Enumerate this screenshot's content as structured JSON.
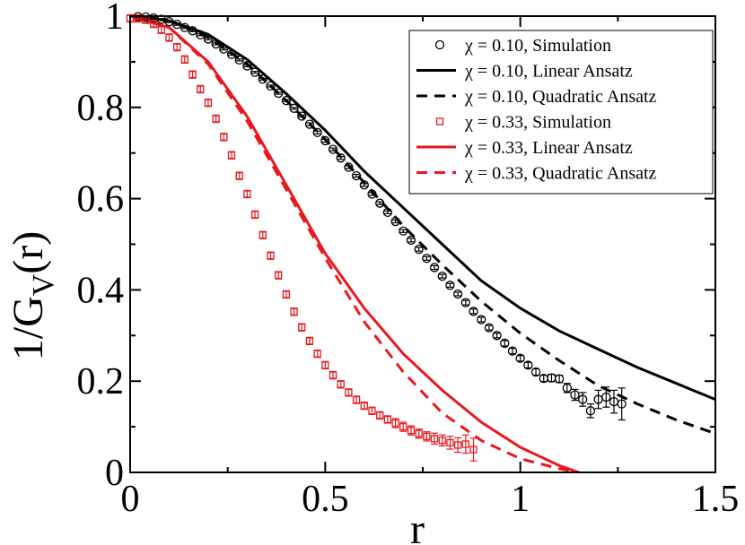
{
  "chart_data": {
    "type": "scatter",
    "xlabel": "r",
    "ylabel": "1/G",
    "ylabel_sub": "V",
    "ylabel_tail": "(r)",
    "xlim": [
      0,
      1.5
    ],
    "ylim": [
      0,
      1
    ],
    "x_ticks": [
      {
        "value": 0,
        "label": "0"
      },
      {
        "value": 0.5,
        "label": "0.5"
      },
      {
        "value": 1,
        "label": "1"
      },
      {
        "value": 1.5,
        "label": "1.5"
      }
    ],
    "y_ticks": [
      {
        "value": 0,
        "label": "0"
      },
      {
        "value": 0.2,
        "label": "0.2"
      },
      {
        "value": 0.4,
        "label": "0.4"
      },
      {
        "value": 0.6,
        "label": "0.6"
      },
      {
        "value": 0.8,
        "label": "0.8"
      },
      {
        "value": 1,
        "label": "1"
      }
    ],
    "legend_position": "top-right",
    "colors": {
      "black": "#000000",
      "red": "#e8191e"
    },
    "series": [
      {
        "name": "χ = 0.10, Simulation",
        "kind": "markers",
        "marker": "circle",
        "color": "#000000",
        "x": [
          0.02,
          0.04,
          0.06,
          0.08,
          0.1,
          0.12,
          0.14,
          0.16,
          0.18,
          0.2,
          0.22,
          0.24,
          0.26,
          0.28,
          0.3,
          0.32,
          0.34,
          0.36,
          0.38,
          0.4,
          0.42,
          0.44,
          0.46,
          0.48,
          0.5,
          0.52,
          0.54,
          0.56,
          0.58,
          0.6,
          0.62,
          0.64,
          0.66,
          0.68,
          0.7,
          0.72,
          0.74,
          0.76,
          0.78,
          0.8,
          0.82,
          0.84,
          0.86,
          0.88,
          0.9,
          0.92,
          0.94,
          0.96,
          0.98,
          1.0,
          1.02,
          1.04,
          1.06,
          1.08,
          1.1,
          1.12,
          1.14,
          1.16,
          1.18,
          1.2,
          1.22,
          1.24,
          1.26
        ],
        "y": [
          0.999,
          0.998,
          0.996,
          0.993,
          0.988,
          0.982,
          0.975,
          0.968,
          0.959,
          0.95,
          0.939,
          0.928,
          0.916,
          0.904,
          0.891,
          0.877,
          0.862,
          0.847,
          0.831,
          0.815,
          0.798,
          0.781,
          0.763,
          0.745,
          0.727,
          0.708,
          0.689,
          0.669,
          0.65,
          0.63,
          0.61,
          0.59,
          0.57,
          0.55,
          0.529,
          0.509,
          0.489,
          0.469,
          0.449,
          0.43,
          0.41,
          0.391,
          0.372,
          0.353,
          0.335,
          0.317,
          0.3,
          0.283,
          0.266,
          0.25,
          0.235,
          0.22,
          0.206,
          0.207,
          0.205,
          0.185,
          0.17,
          0.16,
          0.135,
          0.16,
          0.165,
          0.155,
          0.15
        ],
        "err": [
          0.002,
          0.002,
          0.002,
          0.002,
          0.002,
          0.002,
          0.002,
          0.002,
          0.002,
          0.002,
          0.002,
          0.002,
          0.002,
          0.002,
          0.002,
          0.002,
          0.002,
          0.002,
          0.002,
          0.002,
          0.002,
          0.002,
          0.003,
          0.003,
          0.003,
          0.003,
          0.003,
          0.003,
          0.003,
          0.003,
          0.003,
          0.003,
          0.003,
          0.003,
          0.003,
          0.004,
          0.004,
          0.004,
          0.004,
          0.004,
          0.004,
          0.004,
          0.005,
          0.005,
          0.005,
          0.005,
          0.005,
          0.006,
          0.006,
          0.006,
          0.006,
          0.007,
          0.007,
          0.008,
          0.008,
          0.01,
          0.012,
          0.015,
          0.015,
          0.02,
          0.022,
          0.025,
          0.035
        ]
      },
      {
        "name": "χ = 0.10, Linear Ansatz",
        "kind": "line",
        "dash": "solid",
        "color": "#000000",
        "x": [
          0,
          0.1,
          0.2,
          0.3,
          0.4,
          0.5,
          0.6,
          0.7,
          0.8,
          0.9,
          1.0,
          1.1,
          1.2,
          1.3,
          1.4,
          1.5
        ],
        "y": [
          1.0,
          0.99,
          0.96,
          0.905,
          0.83,
          0.75,
          0.66,
          0.58,
          0.5,
          0.42,
          0.36,
          0.31,
          0.27,
          0.23,
          0.195,
          0.16
        ]
      },
      {
        "name": "χ = 0.10, Quadratic Ansatz",
        "kind": "line",
        "dash": "dashed",
        "color": "#000000",
        "x": [
          0,
          0.1,
          0.2,
          0.3,
          0.4,
          0.5,
          0.6,
          0.7,
          0.8,
          0.9,
          1.0,
          1.1,
          1.2,
          1.3,
          1.4,
          1.5
        ],
        "y": [
          1.0,
          0.99,
          0.955,
          0.895,
          0.815,
          0.73,
          0.635,
          0.54,
          0.455,
          0.375,
          0.305,
          0.245,
          0.19,
          0.15,
          0.115,
          0.085
        ]
      },
      {
        "name": "χ = 0.33, Simulation",
        "kind": "markers",
        "marker": "square",
        "color": "#e8191e",
        "x": [
          0.0,
          0.02,
          0.04,
          0.06,
          0.08,
          0.1,
          0.12,
          0.14,
          0.16,
          0.18,
          0.2,
          0.22,
          0.24,
          0.26,
          0.28,
          0.3,
          0.32,
          0.34,
          0.36,
          0.38,
          0.4,
          0.42,
          0.44,
          0.46,
          0.48,
          0.5,
          0.52,
          0.54,
          0.56,
          0.58,
          0.6,
          0.62,
          0.64,
          0.66,
          0.68,
          0.7,
          0.72,
          0.74,
          0.76,
          0.78,
          0.8,
          0.82,
          0.84,
          0.86,
          0.88
        ],
        "y": [
          0.995,
          0.995,
          0.992,
          0.983,
          0.97,
          0.953,
          0.932,
          0.905,
          0.872,
          0.84,
          0.81,
          0.775,
          0.735,
          0.695,
          0.65,
          0.61,
          0.565,
          0.52,
          0.475,
          0.432,
          0.39,
          0.352,
          0.318,
          0.288,
          0.26,
          0.235,
          0.213,
          0.193,
          0.175,
          0.159,
          0.146,
          0.135,
          0.125,
          0.116,
          0.108,
          0.1,
          0.092,
          0.085,
          0.079,
          0.074,
          0.07,
          0.065,
          0.06,
          0.062,
          0.05
        ],
        "err": [
          0.008,
          0.008,
          0.008,
          0.008,
          0.008,
          0.008,
          0.008,
          0.008,
          0.008,
          0.008,
          0.008,
          0.008,
          0.008,
          0.008,
          0.008,
          0.008,
          0.008,
          0.008,
          0.008,
          0.008,
          0.008,
          0.008,
          0.008,
          0.008,
          0.008,
          0.008,
          0.008,
          0.008,
          0.008,
          0.008,
          0.008,
          0.008,
          0.008,
          0.008,
          0.01,
          0.01,
          0.01,
          0.01,
          0.01,
          0.012,
          0.012,
          0.014,
          0.016,
          0.02,
          0.025
        ]
      },
      {
        "name": "χ = 0.33, Linear Ansatz",
        "kind": "line",
        "dash": "solid",
        "color": "#e8191e",
        "x": [
          0,
          0.1,
          0.2,
          0.3,
          0.4,
          0.5,
          0.6,
          0.7,
          0.8,
          0.9,
          1.0,
          1.1,
          1.15
        ],
        "y": [
          1.0,
          0.975,
          0.9,
          0.78,
          0.63,
          0.48,
          0.36,
          0.26,
          0.18,
          0.11,
          0.055,
          0.015,
          0.0
        ]
      },
      {
        "name": "χ = 0.33, Quadratic Ansatz",
        "kind": "line",
        "dash": "dashed",
        "color": "#e8191e",
        "x": [
          0,
          0.1,
          0.2,
          0.3,
          0.4,
          0.5,
          0.6,
          0.7,
          0.8,
          0.9,
          1.0,
          1.1,
          1.15
        ],
        "y": [
          1.0,
          0.975,
          0.895,
          0.77,
          0.62,
          0.47,
          0.33,
          0.22,
          0.13,
          0.07,
          0.03,
          0.008,
          0.0
        ]
      }
    ]
  }
}
